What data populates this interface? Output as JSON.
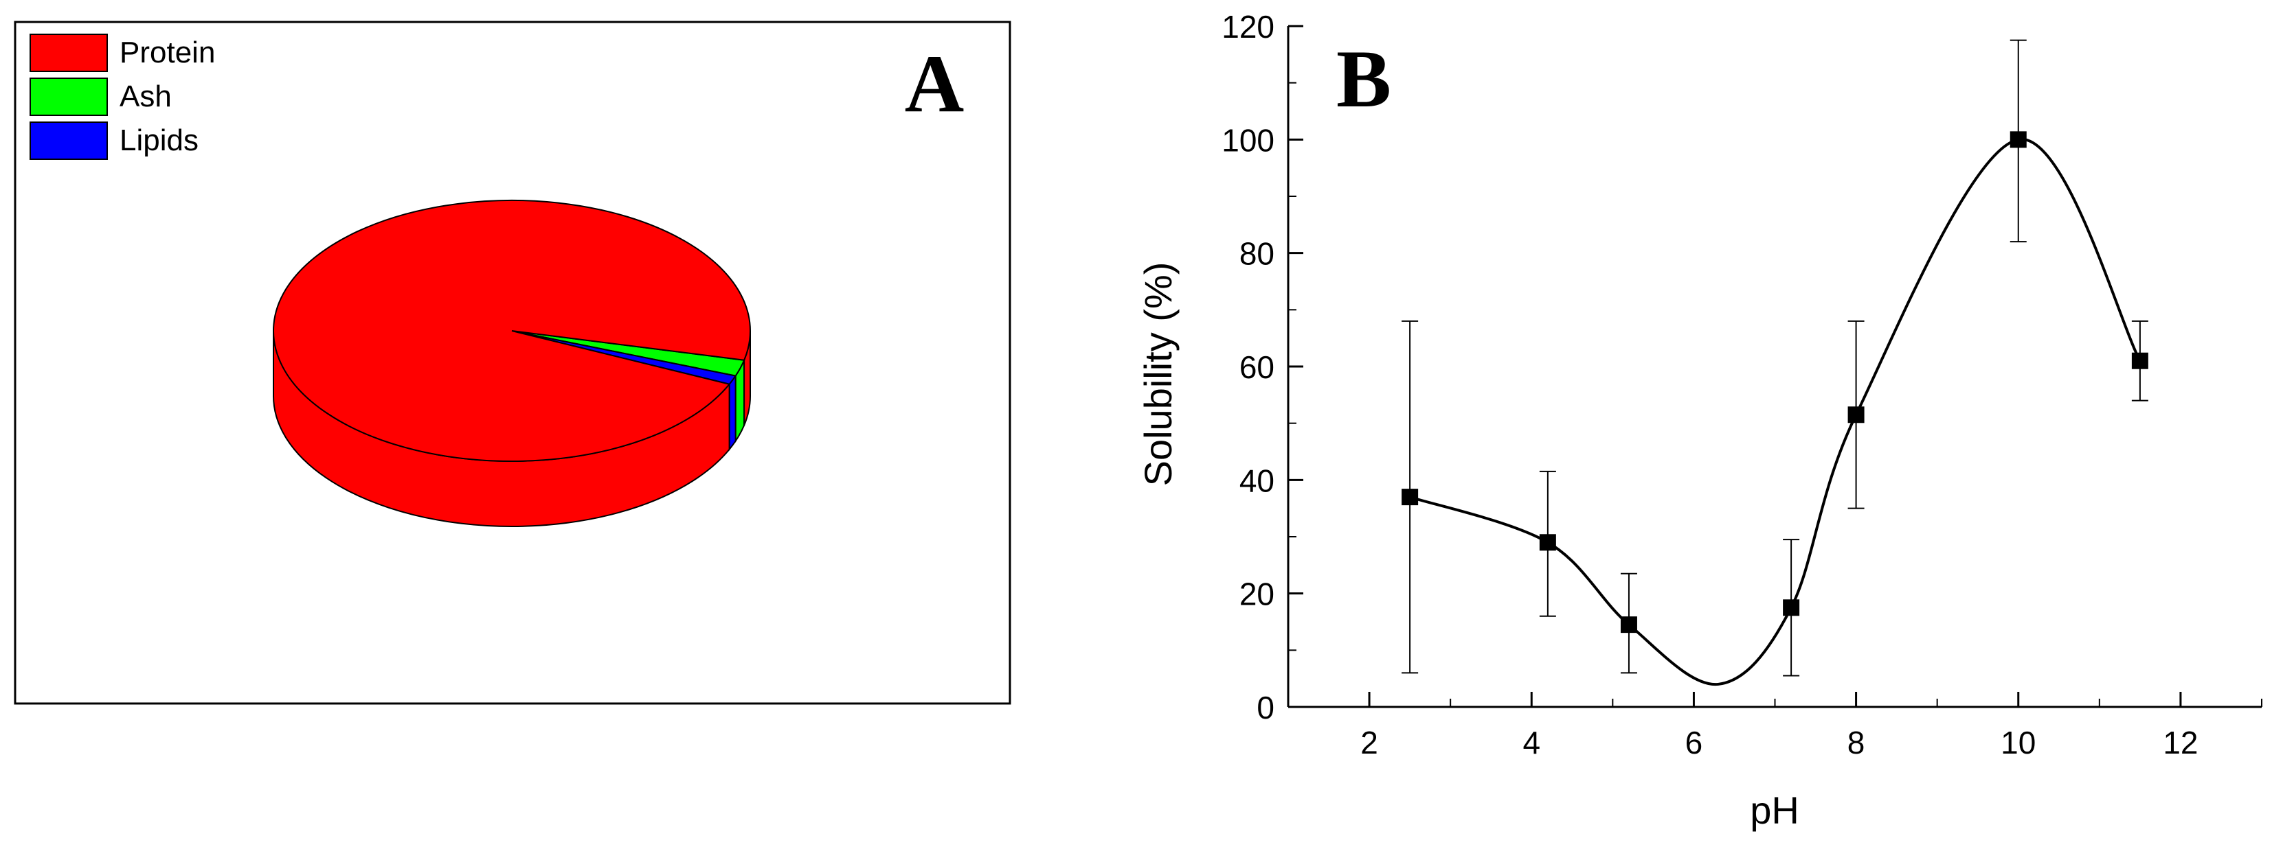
{
  "panel_a": {
    "label": "A",
    "chart_data": {
      "type": "pie",
      "style": "3d",
      "categories": [
        "Protein",
        "Ash",
        "Lipids"
      ],
      "values": [
        96.9,
        2.0,
        1.1
      ],
      "colors": [
        "#ff0000",
        "#00ff00",
        "#0000ff"
      ],
      "legend_position": "top-left"
    }
  },
  "panel_b": {
    "label": "B",
    "chart_data": {
      "type": "line",
      "xlabel": "pH",
      "ylabel": "Solubility (%)",
      "xlim": [
        1,
        13
      ],
      "ylim": [
        0,
        120
      ],
      "x_ticks": [
        2,
        4,
        6,
        8,
        10,
        12
      ],
      "y_ticks": [
        0,
        20,
        40,
        60,
        80,
        100,
        120
      ],
      "series": [
        {
          "name": "Solubility",
          "x": [
            2.5,
            4.2,
            5.2,
            7.2,
            8.0,
            10.0,
            11.5
          ],
          "y": [
            37,
            29,
            14.5,
            17.5,
            51.5,
            100,
            61
          ],
          "err_low": [
            6,
            16,
            6,
            5.5,
            35,
            82,
            54
          ],
          "err_high": [
            68,
            41.5,
            23.5,
            29.5,
            68,
            117.5,
            68
          ],
          "curve_min": {
            "x": 6.3,
            "y": 4
          },
          "color": "#000000"
        }
      ]
    }
  }
}
